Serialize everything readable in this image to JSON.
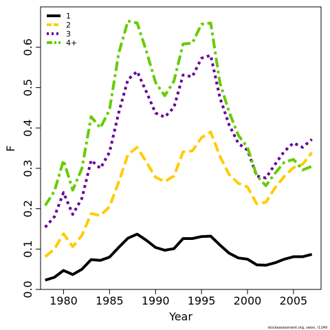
{
  "chart_data": {
    "type": "line",
    "title": "",
    "xlabel": "Year",
    "ylabel": "F",
    "xlim": [
      1977.5,
      2008.0
    ],
    "ylim": [
      0.0,
      0.7
    ],
    "x_ticks": [
      1980,
      1985,
      1990,
      1995,
      2000,
      2005
    ],
    "y_ticks": [
      0.0,
      0.1,
      0.2,
      0.3,
      0.4,
      0.5,
      0.6
    ],
    "x_tick_labels": [
      "1980",
      "1985",
      "1990",
      "1995",
      "2000",
      "2005"
    ],
    "y_tick_labels": [
      "0.0",
      "0.1",
      "0.2",
      "0.3",
      "0.4",
      "0.5",
      "0.6"
    ],
    "grid": false,
    "legend_position": "top-left",
    "x": [
      1978,
      1979,
      1980,
      1981,
      1982,
      1983,
      1984,
      1985,
      1986,
      1987,
      1988,
      1989,
      1990,
      1991,
      1992,
      1993,
      1994,
      1995,
      1996,
      1997,
      1998,
      1999,
      2000,
      2001,
      2002,
      2003,
      2004,
      2005,
      2006,
      2007
    ],
    "series": [
      {
        "name": "1",
        "color": "#000000",
        "dash": "solid",
        "values": [
          0.023,
          0.03,
          0.047,
          0.037,
          0.05,
          0.074,
          0.072,
          0.08,
          0.104,
          0.127,
          0.137,
          0.122,
          0.104,
          0.097,
          0.101,
          0.126,
          0.126,
          0.131,
          0.132,
          0.11,
          0.09,
          0.078,
          0.075,
          0.061,
          0.06,
          0.066,
          0.075,
          0.081,
          0.081,
          0.087
        ]
      },
      {
        "name": "2",
        "color": "#ffcc00",
        "dash": "dashed",
        "values": [
          0.081,
          0.1,
          0.138,
          0.106,
          0.134,
          0.188,
          0.183,
          0.205,
          0.266,
          0.334,
          0.352,
          0.316,
          0.278,
          0.267,
          0.281,
          0.341,
          0.343,
          0.376,
          0.39,
          0.33,
          0.285,
          0.263,
          0.254,
          0.212,
          0.216,
          0.252,
          0.28,
          0.302,
          0.31,
          0.339
        ]
      },
      {
        "name": "3",
        "color": "#660099",
        "dash": "dotted",
        "values": [
          0.154,
          0.18,
          0.24,
          0.186,
          0.226,
          0.32,
          0.3,
          0.34,
          0.438,
          0.52,
          0.54,
          0.49,
          0.437,
          0.427,
          0.451,
          0.531,
          0.527,
          0.573,
          0.58,
          0.475,
          0.408,
          0.362,
          0.345,
          0.281,
          0.276,
          0.31,
          0.342,
          0.363,
          0.352,
          0.372
        ]
      },
      {
        "name": "4+",
        "color": "#66cc00",
        "dash": "dashdot",
        "values": [
          0.208,
          0.243,
          0.32,
          0.246,
          0.3,
          0.428,
          0.4,
          0.445,
          0.585,
          0.665,
          0.66,
          0.591,
          0.513,
          0.48,
          0.516,
          0.608,
          0.61,
          0.657,
          0.66,
          0.512,
          0.44,
          0.382,
          0.352,
          0.282,
          0.257,
          0.288,
          0.315,
          0.322,
          0.296,
          0.305
        ]
      }
    ]
  },
  "footer": {
    "source": "stockassessment.org, swon, r1149"
  }
}
